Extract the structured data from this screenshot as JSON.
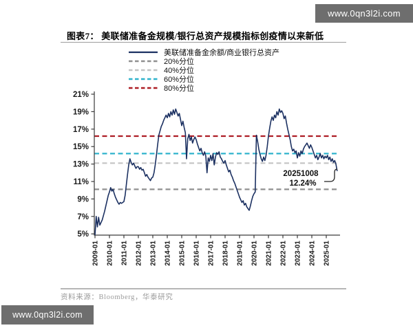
{
  "page": {
    "watermark_top_right": "www.0qn3l2i.com",
    "watermark_bottom_left": "www.0qn3l2i.com"
  },
  "figure": {
    "title": "图表7：  美联储准备金规模/银行总资产规模指标创疫情以来新低",
    "source": "资料来源：Bloomberg，华泰研究"
  },
  "chart_data": {
    "type": "line",
    "title": "美联储准备金规模/银行总资产规模指标创疫情以来新低",
    "xlabel": "",
    "ylabel": "",
    "ylim": [
      5,
      21
    ],
    "grid": false,
    "legend_position": "top-center",
    "y_tick_values": [
      21,
      19,
      17,
      15,
      13,
      11,
      9,
      7,
      5
    ],
    "y_tick_labels": [
      "21%",
      "19%",
      "17%",
      "15%",
      "13%",
      "11%",
      "9%",
      "7%",
      "5%"
    ],
    "x_tick_labels": [
      "2009-01",
      "2010-01",
      "2011-01",
      "2012-01",
      "2013-01",
      "2014-01",
      "2015-01",
      "2016-01",
      "2017-01",
      "2018-01",
      "2019-01",
      "2020-01",
      "2021-01",
      "2022-01",
      "2023-01",
      "2024-01",
      "2025-01"
    ],
    "series": [
      {
        "name": "美联储准备金余额/商业银行总资产",
        "type": "line",
        "style": "solid",
        "color": "#1b3061",
        "x_start": "2009-01",
        "x_interval": "monthly",
        "values": [
          4.9,
          7.0,
          5.8,
          6.9,
          6.0,
          6.3,
          6.6,
          7.1,
          7.6,
          8.2,
          8.8,
          9.4,
          9.8,
          10.3,
          9.9,
          10.1,
          9.6,
          9.2,
          8.9,
          8.6,
          8.4,
          8.6,
          8.5,
          8.6,
          8.7,
          9.4,
          10.6,
          11.8,
          12.9,
          13.6,
          13.2,
          12.9,
          13.1,
          12.8,
          12.5,
          12.7,
          12.7,
          12.4,
          12.6,
          12.3,
          12.4,
          12.0,
          11.6,
          11.8,
          11.5,
          11.3,
          11.1,
          11.4,
          11.5,
          12.0,
          12.9,
          14.0,
          15.2,
          16.3,
          16.8,
          17.3,
          17.6,
          18.0,
          18.3,
          18.6,
          18.3,
          18.8,
          18.4,
          19.0,
          18.6,
          19.2,
          18.7,
          19.3,
          18.9,
          18.5,
          18.8,
          18.1,
          17.4,
          17.9,
          17.2,
          16.6,
          13.6,
          15.9,
          16.4,
          15.7,
          16.1,
          15.4,
          15.8,
          16.1,
          15.8,
          15.3,
          14.9,
          14.5,
          14.8,
          14.3,
          14.0,
          14.4,
          13.9,
          12.0,
          13.7,
          13.3,
          14.0,
          13.4,
          14.2,
          12.9,
          13.8,
          14.3,
          14.1,
          14.4,
          13.8,
          13.6,
          13.3,
          13.1,
          13.4,
          12.9,
          12.5,
          12.1,
          12.3,
          11.8,
          11.5,
          11.1,
          10.8,
          10.4,
          10.0,
          9.6,
          9.2,
          8.9,
          8.6,
          8.8,
          8.3,
          8.5,
          8.1,
          7.9,
          7.7,
          8.2,
          8.8,
          9.3,
          9.6,
          9.8,
          16.3,
          15.6,
          14.7,
          14.1,
          13.6,
          13.3,
          13.8,
          13.4,
          14.0,
          15.0,
          16.2,
          17.1,
          17.9,
          18.4,
          18.0,
          18.6,
          18.3,
          19.0,
          18.6,
          19.3,
          18.9,
          19.1,
          18.8,
          18.2,
          18.5,
          17.7,
          17.0,
          16.4,
          15.8,
          15.0,
          14.5,
          14.7,
          14.3,
          14.5,
          13.7,
          14.3,
          13.9,
          14.5,
          14.2,
          14.7,
          15.0,
          15.2,
          15.4,
          15.1,
          14.8,
          15.2,
          14.9,
          14.5,
          14.1,
          13.7,
          14.0,
          13.5,
          13.8,
          14.2,
          13.7,
          14.0,
          13.6,
          13.9,
          13.7,
          14.0,
          13.5,
          13.8,
          13.3,
          13.6,
          13.2,
          13.4,
          13.0,
          12.24
        ]
      },
      {
        "name": "20%分位",
        "type": "hline",
        "style": "dashed",
        "color": "#8f8f8f",
        "value": 10.1
      },
      {
        "name": "40%分位",
        "type": "hline",
        "style": "dashed",
        "color": "#c4c4c4",
        "value": 13.1
      },
      {
        "name": "60%分位",
        "type": "hline",
        "style": "dashed",
        "color": "#2eb3cc",
        "value": 14.2
      },
      {
        "name": "80%分位",
        "type": "hline",
        "style": "dashed",
        "color": "#ad1c24",
        "value": 16.2
      }
    ],
    "annotation": {
      "date": "20251008",
      "value_label": "12.24%",
      "value": 12.24
    }
  }
}
